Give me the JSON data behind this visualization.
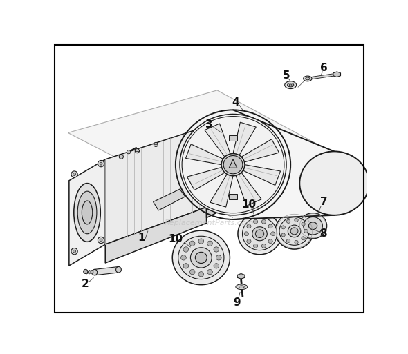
{
  "background_color": "#ffffff",
  "border_color": "#000000",
  "line_color": "#1a1a1a",
  "watermark": "ReplacementParts.com",
  "watermark_color": "#bbbbbb",
  "watermark_alpha": 0.6,
  "figsize": [
    5.9,
    5.13
  ],
  "dpi": 100,
  "gray_light": "#e8e8e8",
  "gray_mid": "#c8c8c8",
  "gray_dark": "#909090",
  "gray_fill": "#f0f0f0"
}
